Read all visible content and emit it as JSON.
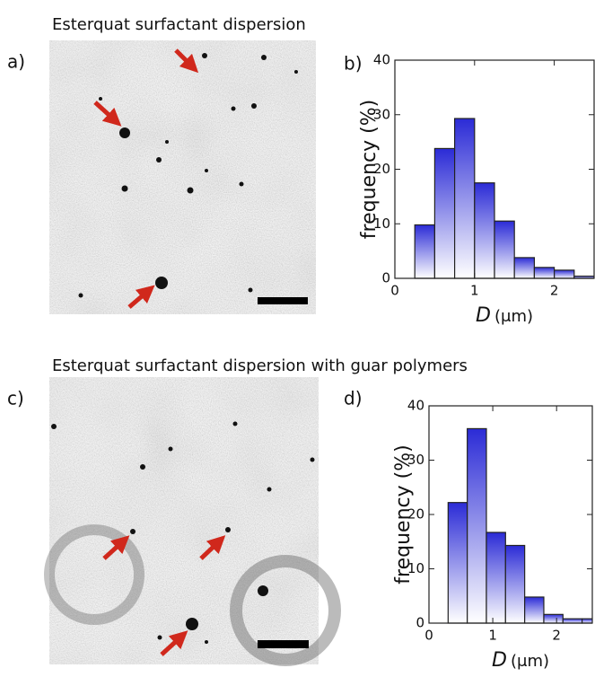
{
  "figure": {
    "captions": [
      "Esterquat surfactant dispersion",
      "Esterquat surfactant dispersion with guar polymers"
    ],
    "panel_labels": [
      "a)",
      "b)",
      "c)",
      "d)"
    ]
  },
  "chart_data": [
    {
      "type": "histogram",
      "y_label": "frequency (%)",
      "x_label_var": "D",
      "x_label_unit": "(μm)",
      "bins": [
        0.25,
        0.5,
        0.75,
        1.0,
        1.25,
        1.5,
        1.75,
        2.0,
        2.25,
        2.5
      ],
      "values": [
        9.8,
        23.8,
        29.3,
        17.5,
        10.5,
        3.8,
        2.0,
        1.5,
        0.4
      ],
      "color": "#2b2bd6",
      "xlim": [
        0,
        2.5
      ],
      "ylim": [
        0,
        40
      ],
      "xticks": [
        0,
        1,
        2
      ],
      "yticks": [
        0,
        10,
        20,
        30,
        40
      ],
      "grid": false
    },
    {
      "type": "histogram",
      "y_label": "frequency (%)",
      "x_label_var": "D",
      "x_label_unit": "(μm)",
      "bins": [
        0.3,
        0.6,
        0.9,
        1.2,
        1.5,
        1.8,
        2.1,
        2.4,
        2.7
      ],
      "values": [
        22.2,
        35.8,
        16.7,
        14.3,
        4.8,
        1.6,
        0.8,
        0.8
      ],
      "color": "#2b2bd6",
      "xlim": [
        0,
        2.56
      ],
      "ylim": [
        0,
        40
      ],
      "xticks": [
        0,
        1,
        2
      ],
      "yticks": [
        0,
        10,
        20,
        30,
        40
      ],
      "grid": false
    }
  ]
}
